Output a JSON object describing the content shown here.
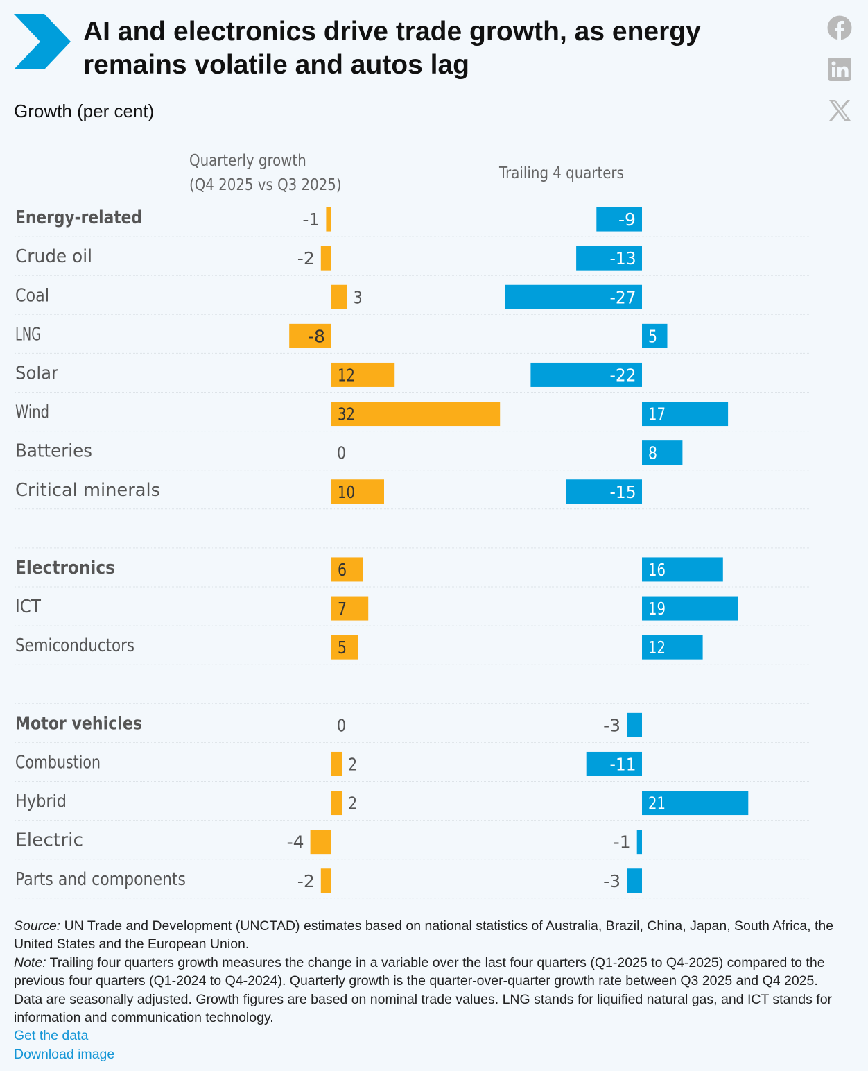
{
  "title": "AI and electronics drive trade growth, as energy remains volatile and autos lag",
  "subtitle": "Growth (per cent)",
  "social": {
    "facebook_icon": "facebook-icon",
    "linkedin_icon": "linkedin-icon",
    "x_icon": "x-icon"
  },
  "colors": {
    "quarterly": "#fbad18",
    "trailing": "#009edb",
    "accent": "#009edb"
  },
  "chart_data": {
    "type": "bar",
    "orientation": "horizontal",
    "unit": "per cent",
    "categories": [
      {
        "label": "Energy-related",
        "group_header": true
      },
      {
        "label": "Crude oil",
        "group_header": false
      },
      {
        "label": "Coal",
        "group_header": false
      },
      {
        "label": "LNG",
        "group_header": false
      },
      {
        "label": "Solar",
        "group_header": false
      },
      {
        "label": "Wind",
        "group_header": false
      },
      {
        "label": "Batteries",
        "group_header": false
      },
      {
        "label": "Critical minerals",
        "group_header": false
      },
      {
        "label": "",
        "group_header": false
      },
      {
        "label": "Electronics",
        "group_header": true
      },
      {
        "label": "ICT",
        "group_header": false
      },
      {
        "label": "Semiconductors",
        "group_header": false
      },
      {
        "label": "",
        "group_header": false
      },
      {
        "label": "Motor vehicles",
        "group_header": true
      },
      {
        "label": "Combustion",
        "group_header": false
      },
      {
        "label": "Hybrid",
        "group_header": false
      },
      {
        "label": "Electric",
        "group_header": false
      },
      {
        "label": "Parts and components",
        "group_header": false
      }
    ],
    "series": [
      {
        "name": "Quarterly growth (Q4 2025 vs Q3 2025)",
        "name_lines": [
          "Quarterly growth",
          "(Q4 2025 vs Q3 2025)"
        ],
        "values": [
          -1,
          -2,
          3,
          -8,
          12,
          32,
          0,
          10,
          null,
          6,
          7,
          5,
          null,
          0,
          2,
          2,
          -4,
          -2
        ]
      },
      {
        "name": "Trailing 4 quarters",
        "name_lines": [
          "Trailing 4 quarters"
        ],
        "values": [
          -9,
          -13,
          -27,
          5,
          -22,
          17,
          8,
          -15,
          null,
          16,
          19,
          12,
          null,
          -3,
          -11,
          21,
          -1,
          -3
        ]
      }
    ]
  },
  "notes": {
    "source_label": "Source:",
    "source_text": " UN Trade and Development (UNCTAD) estimates based on national statistics of Australia, Brazil, China, Japan, South Africa, the United States and the European Union.",
    "note_label": "Note:",
    "note_text": " Trailing four quarters growth measures the change in a variable over the last four quarters (Q1-2025 to Q4-2025) compared to the previous four quarters (Q1-2024 to Q4-2024). Quarterly growth is the quarter-over-quarter growth rate between Q3 2025 and Q4 2025. Data are seasonally adjusted. Growth figures are based on nominal trade values. LNG stands for liquified natural gas, and ICT stands for information and communication technology."
  },
  "links": {
    "get_data": "Get the data",
    "download_image": "Download image"
  }
}
